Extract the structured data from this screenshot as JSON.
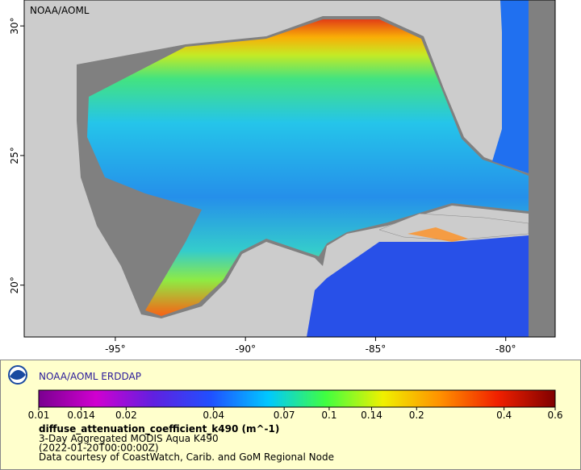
{
  "map": {
    "watermark": "NOAA/AOML",
    "xlim": [
      -98.5,
      -78.1
    ],
    "ylim": [
      18,
      31
    ],
    "xticks": [
      {
        "value": -95,
        "label": "-95°"
      },
      {
        "value": -90,
        "label": "-90°"
      },
      {
        "value": -85,
        "label": "-85°"
      },
      {
        "value": -80,
        "label": "-80°"
      }
    ],
    "yticks": [
      {
        "value": 20,
        "label": "20°"
      },
      {
        "value": 25,
        "label": "25°"
      },
      {
        "value": 30,
        "label": "30°"
      }
    ]
  },
  "legend": {
    "title": "NOAA/AOML ERDDAP",
    "colorbar": {
      "scale": "log",
      "range": [
        0.01,
        0.6
      ],
      "ticks": [
        0.01,
        0.014,
        0.02,
        0.04,
        0.07,
        0.1,
        0.14,
        0.2,
        0.4,
        0.6
      ],
      "colormap": [
        "#7a0090",
        "#d000d0",
        "#6020e0",
        "#2050ff",
        "#00c8ff",
        "#40ff40",
        "#f0f000",
        "#ff9000",
        "#f02000",
        "#800000"
      ]
    },
    "variable": "diffuse_attenuation_coefficient_k490 (m^-1)",
    "lines": [
      "3-Day Aggregated MODIS Aqua K490",
      "(2022-01-20T00:00:00Z)",
      "Data courtesy of CoastWatch, Carib. and GoM Regional Node"
    ]
  }
}
